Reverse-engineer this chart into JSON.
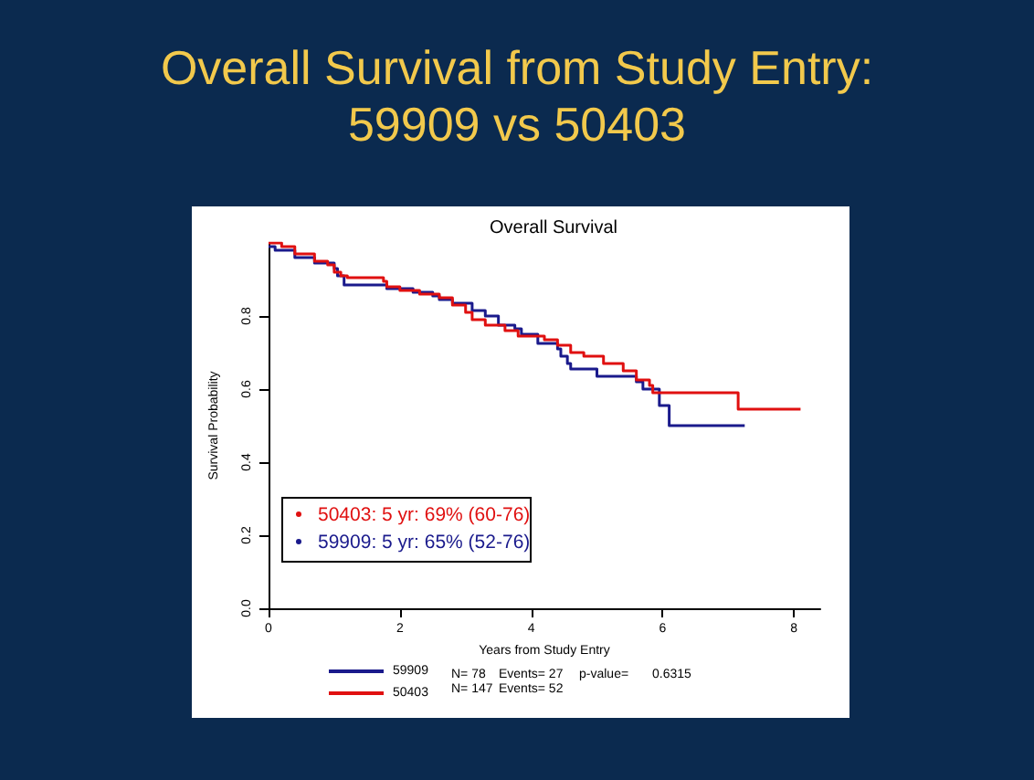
{
  "chart_data": {
    "type": "step",
    "title": "Overall Survival from Study Entry: 59909 vs 50403",
    "subtitle": "Overall Survival",
    "xlabel": "Years from Study Entry",
    "ylabel": "Survival Probability",
    "series": [
      {
        "name": "59909",
        "color": "#1a1a8c",
        "x": [
          0,
          0.1,
          0.4,
          0.7,
          1.0,
          1.05,
          1.15,
          1.8,
          2.2,
          2.5,
          2.6,
          2.8,
          3.1,
          3.3,
          3.5,
          3.75,
          3.85,
          4.1,
          4.4,
          4.45,
          4.55,
          4.6,
          5.0,
          5.6,
          5.7,
          5.95,
          6.1,
          7.25
        ],
        "values": [
          0.99,
          0.98,
          0.96,
          0.945,
          0.93,
          0.91,
          0.885,
          0.875,
          0.865,
          0.855,
          0.845,
          0.835,
          0.815,
          0.8,
          0.775,
          0.765,
          0.75,
          0.725,
          0.71,
          0.69,
          0.67,
          0.655,
          0.635,
          0.62,
          0.6,
          0.555,
          0.5,
          0.5
        ]
      },
      {
        "name": "50403",
        "color": "#e01010",
        "x": [
          0,
          0.2,
          0.4,
          0.7,
          0.9,
          1.0,
          1.1,
          1.2,
          1.75,
          1.8,
          2.0,
          2.3,
          2.6,
          2.8,
          3.0,
          3.1,
          3.3,
          3.6,
          3.8,
          4.2,
          4.4,
          4.6,
          4.8,
          5.1,
          5.4,
          5.6,
          5.8,
          5.85,
          7.15,
          8.1
        ],
        "values": [
          1.0,
          0.99,
          0.97,
          0.95,
          0.94,
          0.92,
          0.91,
          0.905,
          0.895,
          0.88,
          0.87,
          0.86,
          0.85,
          0.83,
          0.81,
          0.79,
          0.775,
          0.76,
          0.745,
          0.735,
          0.72,
          0.7,
          0.69,
          0.67,
          0.65,
          0.625,
          0.61,
          0.59,
          0.545,
          0.545
        ]
      }
    ],
    "xlim": [
      0,
      8.4
    ],
    "xticks": [
      0,
      2,
      4,
      6,
      8
    ],
    "ylim": [
      0,
      1
    ],
    "yticks": [
      {
        "value": 0,
        "label": "0.0"
      },
      {
        "value": 0.2,
        "label": "0.2"
      },
      {
        "value": 0.4,
        "label": "0.4"
      },
      {
        "value": 0.6,
        "label": "0.6"
      },
      {
        "value": 0.8,
        "label": "0.8"
      }
    ],
    "grid": false,
    "legend": "bottom",
    "marker": "none",
    "line_style": "solid",
    "annotations": [
      "50403: 5 yr: 69% (60-76)",
      "59909: 5 yr: 65% (52-76)",
      "N= 78",
      "Events= 27",
      "p-value=",
      "0.6315",
      "N= 147",
      "Events= 52"
    ]
  }
}
